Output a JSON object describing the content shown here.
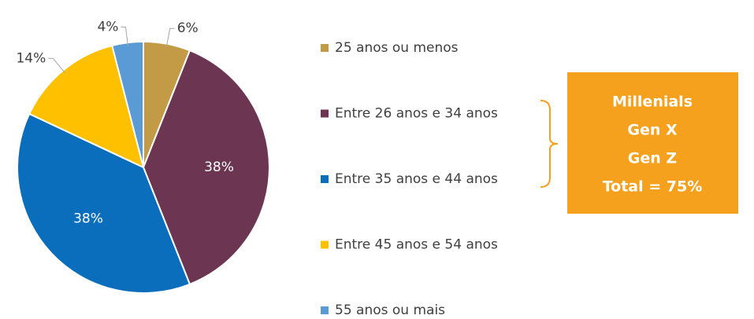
{
  "chart_data": {
    "type": "pie",
    "categories": [
      "25 anos ou menos",
      "Entre 26 anos e 34 anos",
      "Entre 35 anos e 44 anos",
      "Entre 45 anos e 54 anos",
      "55 anos ou mais"
    ],
    "values": [
      6,
      38,
      38,
      14,
      4
    ],
    "value_labels": [
      "6%",
      "38%",
      "38%",
      "14%",
      "4%"
    ],
    "colors": [
      "#c39a45",
      "#6c3653",
      "#0a6ebd",
      "#ffc000",
      "#5b9bd5"
    ],
    "annotation": [
      "Millenials",
      "Gen X",
      "Gen Z",
      "Total = 75%"
    ],
    "annotation_color": "#f5a11e"
  }
}
